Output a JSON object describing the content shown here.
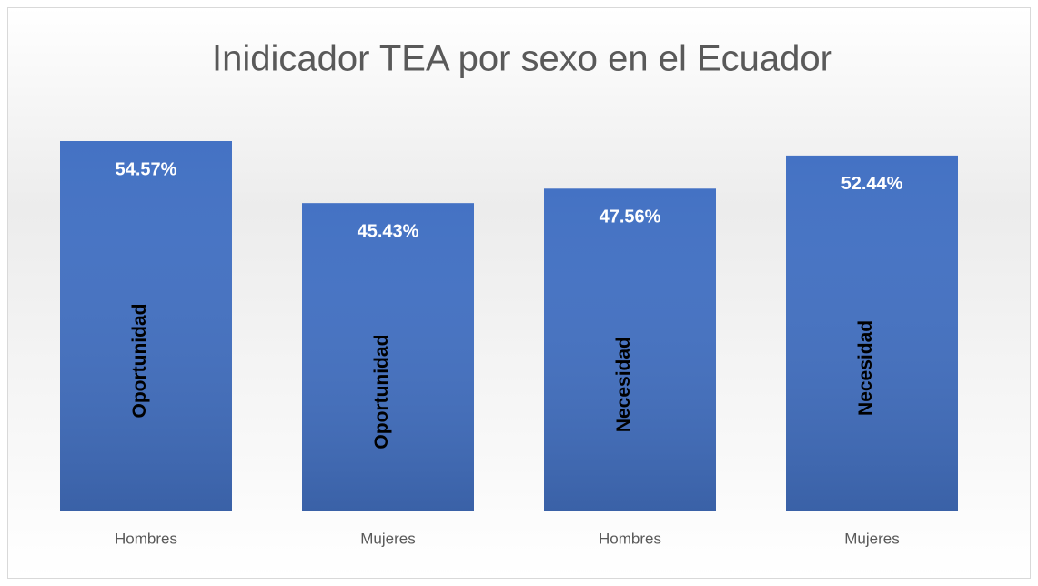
{
  "chart_data": {
    "type": "bar",
    "title": "Inidicador TEA por sexo en el Ecuador",
    "categories": [
      "Hombres",
      "Mujeres",
      "Hombres",
      "Mujeres"
    ],
    "values": [
      54.57,
      45.43,
      47.56,
      52.44
    ],
    "value_labels": [
      "54.57%",
      "45.43%",
      "47.56%",
      "52.44%"
    ],
    "bar_labels": [
      "Oportunidad",
      "Oportunidad",
      "Necesidad",
      "Necesidad"
    ],
    "color": "#4472c4"
  }
}
